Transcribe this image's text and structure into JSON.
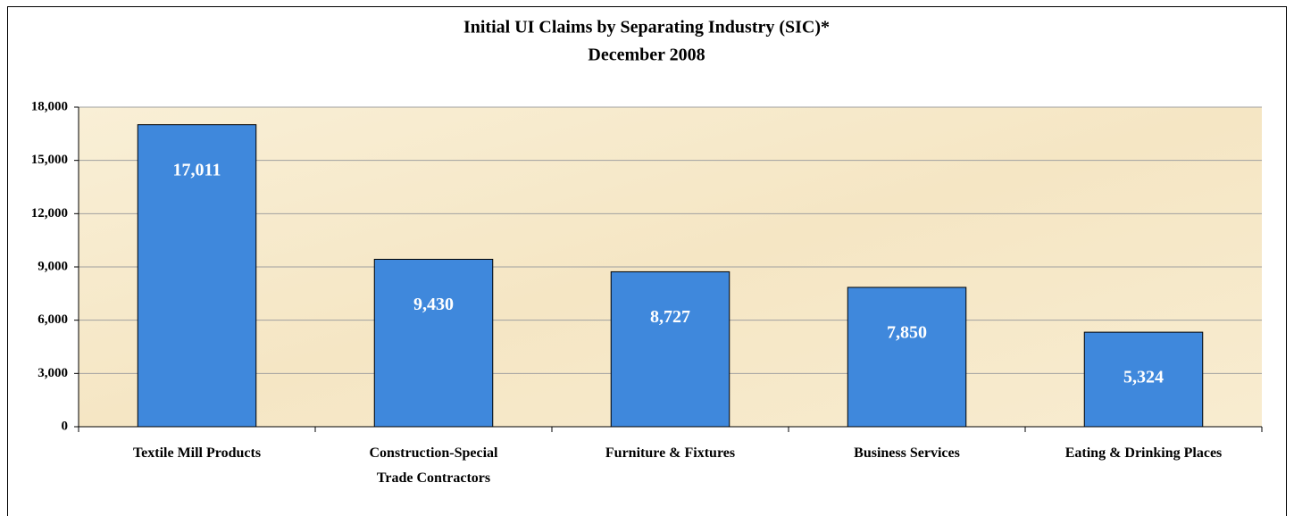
{
  "chart_data": {
    "type": "bar",
    "title": "Initial UI Claims by Separating Industry (SIC)*",
    "subtitle": "December 2008",
    "categories": [
      "Textile Mill Products",
      "Construction-Special Trade Contractors",
      "Furniture & Fixtures",
      "Business Services",
      "Eating & Drinking Places"
    ],
    "values": [
      17011,
      9430,
      8727,
      7850,
      5324
    ],
    "value_labels": [
      "17,011",
      "9,430",
      "8,727",
      "7,850",
      "5,324"
    ],
    "color": "#3f88dc",
    "ylim": [
      0,
      18000
    ],
    "yticks": [
      0,
      {
        "value": 3000,
        "label": "3,000"
      },
      {
        "value": 6000,
        "label": "6,000"
      },
      {
        "value": 9000,
        "label": "9,000"
      },
      {
        "value": 12000,
        "label": "12,000"
      },
      {
        "value": 15000,
        "label": "15,000"
      },
      {
        "value": 18000,
        "label": "18,000"
      }
    ],
    "grid": true
  }
}
